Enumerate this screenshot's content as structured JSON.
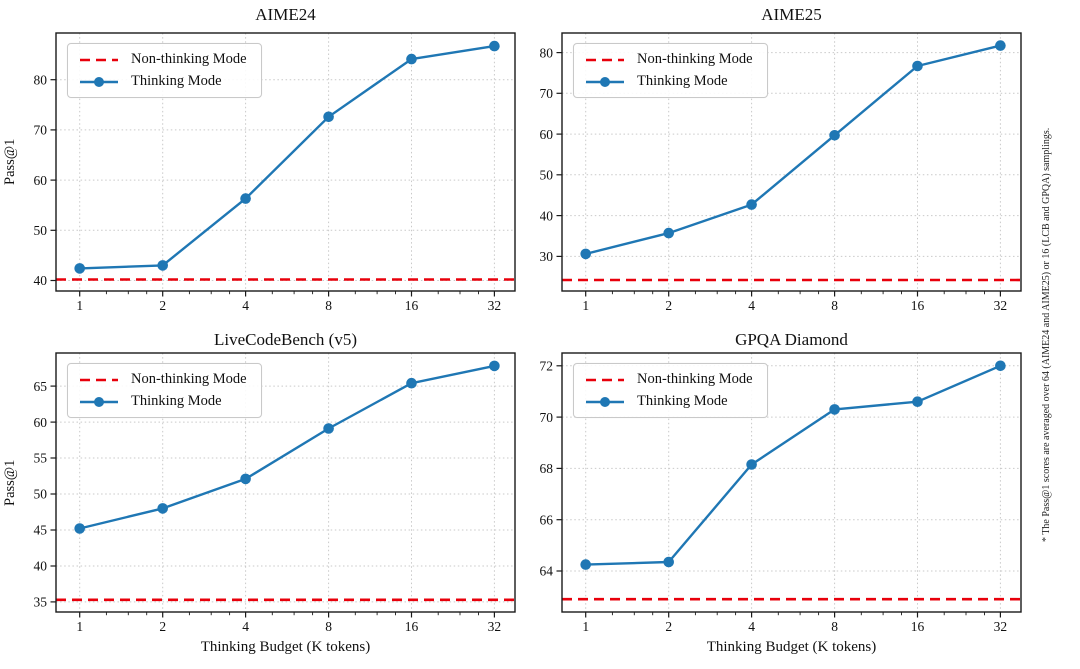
{
  "figure": {
    "xlabel": "Thinking Budget (K tokens)",
    "ylabel": "Pass@1",
    "side_note": "* The Pass@1 scores are averaged over 64 (AIME24 and AIME25) or 16 (LCB and GPQA) samplings.",
    "legend": {
      "non_thinking": "Non-thinking Mode",
      "thinking": "Thinking Mode"
    },
    "xticks": [
      1,
      2,
      4,
      8,
      16,
      32
    ],
    "xminor_mult": [
      1.25,
      1.5,
      1.75
    ],
    "xlim": [
      0.82,
      38
    ],
    "xscale": "log2",
    "grid": true,
    "legend_position": "upper-left",
    "colors": {
      "thinking": "#1f77b4",
      "non_thinking": "#e8000b",
      "grid": "#c9c9c9",
      "spine": "#1a1a1a"
    }
  },
  "chart_data": [
    {
      "type": "line",
      "title": "AIME24",
      "x": [
        1,
        2,
        4,
        8,
        16,
        32
      ],
      "series": [
        {
          "name": "Thinking Mode",
          "values": [
            42.4,
            43.0,
            56.3,
            72.6,
            84.1,
            86.7
          ]
        },
        {
          "name": "Non-thinking Mode",
          "constant": 40.2
        }
      ],
      "yticks": [
        40,
        50,
        60,
        70,
        80
      ],
      "ylim": [
        37.9,
        89.3
      ],
      "ylabel": "Pass@1",
      "xlabel": ""
    },
    {
      "type": "line",
      "title": "AIME25",
      "x": [
        1,
        2,
        4,
        8,
        16,
        32
      ],
      "series": [
        {
          "name": "Thinking Mode",
          "values": [
            30.6,
            35.7,
            42.7,
            59.7,
            76.7,
            81.7
          ]
        },
        {
          "name": "Non-thinking Mode",
          "constant": 24.2
        }
      ],
      "yticks": [
        30,
        40,
        50,
        60,
        70,
        80
      ],
      "ylim": [
        21.5,
        84.8
      ],
      "ylabel": "",
      "xlabel": ""
    },
    {
      "type": "line",
      "title": "LiveCodeBench (v5)",
      "x": [
        1,
        2,
        4,
        8,
        16,
        32
      ],
      "series": [
        {
          "name": "Thinking Mode",
          "values": [
            45.2,
            48.0,
            52.1,
            59.1,
            65.4,
            67.8
          ]
        },
        {
          "name": "Non-thinking Mode",
          "constant": 35.3
        }
      ],
      "yticks": [
        35,
        40,
        45,
        50,
        55,
        60,
        65
      ],
      "ylim": [
        33.6,
        69.6
      ],
      "ylabel": "Pass@1",
      "xlabel": "Thinking Budget (K tokens)"
    },
    {
      "type": "line",
      "title": "GPQA Diamond",
      "x": [
        1,
        2,
        4,
        8,
        16,
        32
      ],
      "series": [
        {
          "name": "Thinking Mode",
          "values": [
            64.25,
            64.35,
            68.15,
            70.3,
            70.6,
            72.0
          ]
        },
        {
          "name": "Non-thinking Mode",
          "constant": 62.9
        }
      ],
      "yticks": [
        64,
        66,
        68,
        70,
        72
      ],
      "ylim": [
        62.4,
        72.5
      ],
      "ylabel": "",
      "xlabel": "Thinking Budget (K tokens)"
    }
  ]
}
